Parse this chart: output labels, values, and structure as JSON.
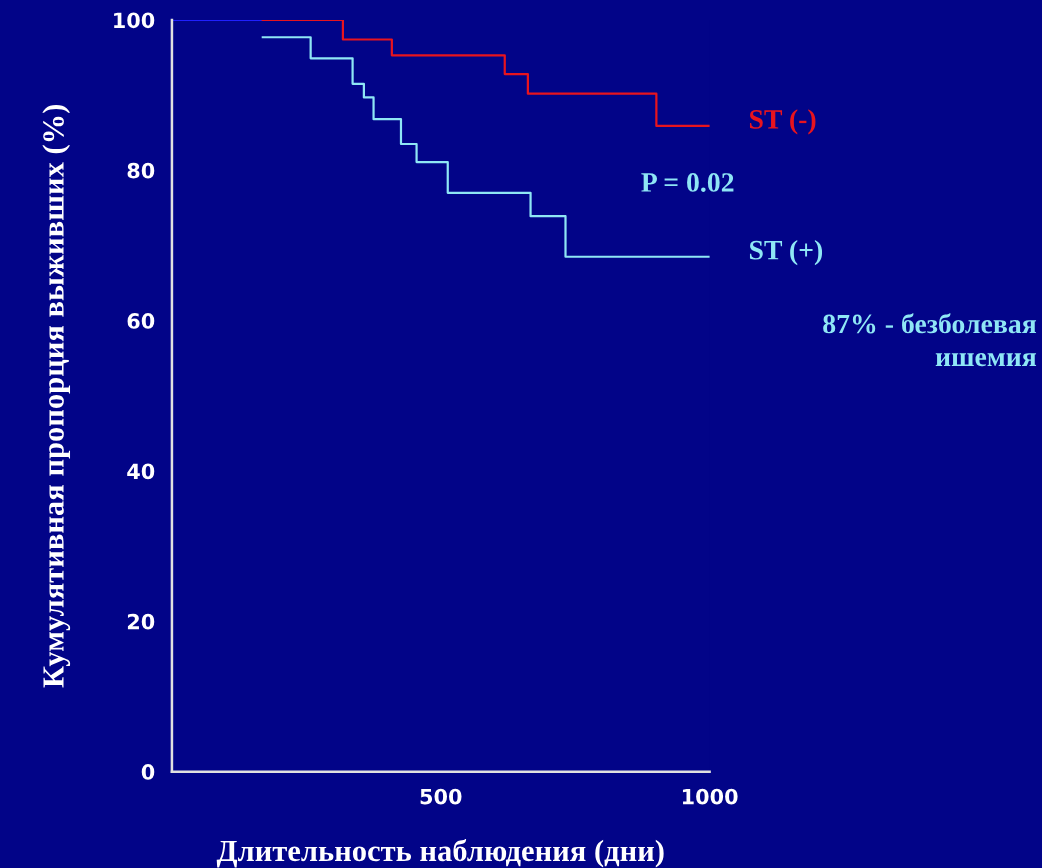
{
  "chart_data": {
    "type": "step",
    "xlabel": "Длительность наблюдения (дни)",
    "ylabel": "Кумулятивная пропорция выживших (%)",
    "xlim": [
      0,
      1000
    ],
    "xticks": [
      500,
      1000
    ],
    "ylim": [
      0,
      100
    ],
    "yticks": [
      0,
      20,
      40,
      60,
      80,
      100
    ],
    "series": [
      {
        "color": "#2020ff",
        "x": [
          0,
          169
        ],
        "values": [
          100,
          100
        ]
      },
      {
        "name": "ST (-)",
        "color": "#e8141e",
        "x": [
          169,
          318,
          409,
          619,
          662,
          901,
          1000
        ],
        "values": [
          100,
          97.4,
          95.3,
          92.8,
          90.2,
          85.9,
          85.9
        ]
      },
      {
        "name": "ST (+)",
        "color": "#8fe6f5",
        "x": [
          169,
          258,
          336,
          357,
          375,
          426,
          455,
          513,
          667,
          732,
          1000
        ],
        "values": [
          97.7,
          94.9,
          91.5,
          89.7,
          86.8,
          83.5,
          81.1,
          77.0,
          73.9,
          68.5,
          68.5
        ]
      }
    ],
    "annotations": [
      "P = 0.02",
      "87% - безболевая\nишемия"
    ],
    "grid": false,
    "legend": false
  }
}
